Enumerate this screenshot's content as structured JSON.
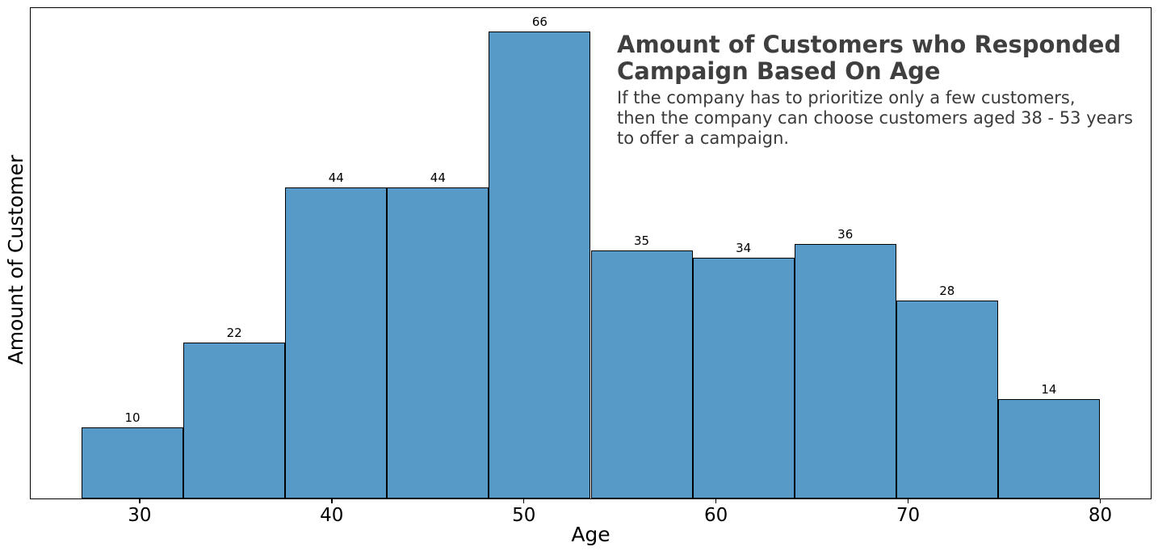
{
  "chart_data": {
    "type": "bar",
    "subtype": "histogram",
    "title": "Amount of Customers who Responded\nCampaign Based On Age",
    "subtitle": "If the company has to prioritize only a few customers,\nthen the company can choose customers aged 38 - 53 years\nto offer a campaign.",
    "xlabel": "Age",
    "ylabel": "Amount of Customer",
    "bin_edges": [
      27.0,
      32.3,
      37.6,
      42.9,
      48.2,
      53.5,
      58.8,
      64.1,
      69.4,
      74.7,
      80.0
    ],
    "values": [
      10,
      22,
      44,
      44,
      66,
      35,
      34,
      36,
      28,
      14
    ],
    "xticks": [
      30,
      40,
      50,
      60,
      70,
      80
    ],
    "xlim": [
      24.35,
      82.65
    ],
    "ylim": [
      0,
      69.3
    ],
    "grid": false,
    "legend": null,
    "bar_color": "#5799C7",
    "bar_edge_color": "#000000",
    "title_color": "#3f3f3f",
    "subtitle_color": "#3a3a3a"
  }
}
